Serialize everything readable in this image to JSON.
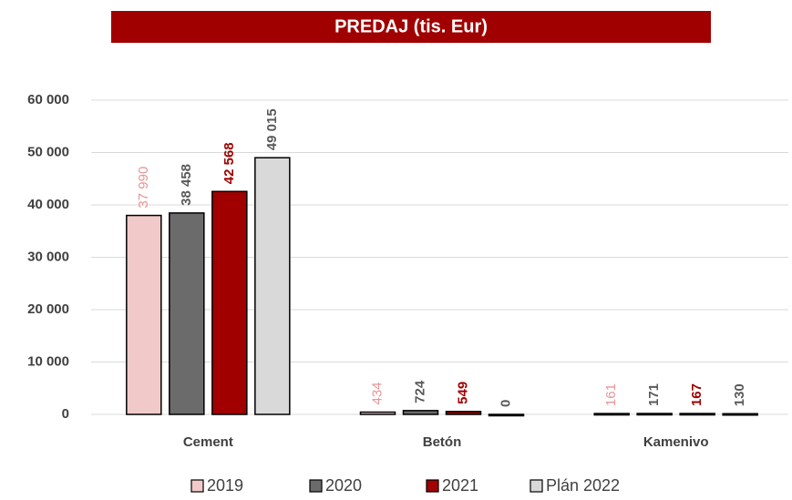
{
  "chart_data": {
    "type": "bar",
    "title": "PREDAJ (tis. Eur)",
    "categories": [
      "Cement",
      "Betón",
      "Kamenivo"
    ],
    "series": [
      {
        "name": "2019",
        "color": "#f2c9c9",
        "label_color": "#e89595",
        "values": [
          37990,
          434,
          161
        ],
        "value_labels": [
          "37 990",
          "434",
          "161"
        ]
      },
      {
        "name": "2020",
        "color": "#6b6b6b",
        "label_color": "#595959",
        "values": [
          38458,
          724,
          171
        ],
        "value_labels": [
          "38 458",
          "724",
          "171"
        ]
      },
      {
        "name": "2021",
        "color": "#a00000",
        "label_color": "#a00000",
        "values": [
          42568,
          549,
          167
        ],
        "value_labels": [
          "42 568",
          "549",
          "167"
        ]
      },
      {
        "name": "Plán 2022",
        "color": "#d9d9d9",
        "label_color": "#595959",
        "values": [
          49015,
          0,
          130
        ],
        "value_labels": [
          "49 015",
          "0",
          "130"
        ]
      }
    ],
    "ylim": [
      0,
      60000
    ],
    "yticks": [
      0,
      {
        "value": 10000,
        "label": "10 000"
      },
      {
        "value": 20000,
        "label": "20 000"
      },
      {
        "value": 30000,
        "label": "30 000"
      },
      {
        "value": 40000,
        "label": "40 000"
      },
      {
        "value": 50000,
        "label": "50 000"
      },
      {
        "value": 60000,
        "label": "60 000"
      }
    ],
    "grid": true,
    "legend": "bottom"
  }
}
